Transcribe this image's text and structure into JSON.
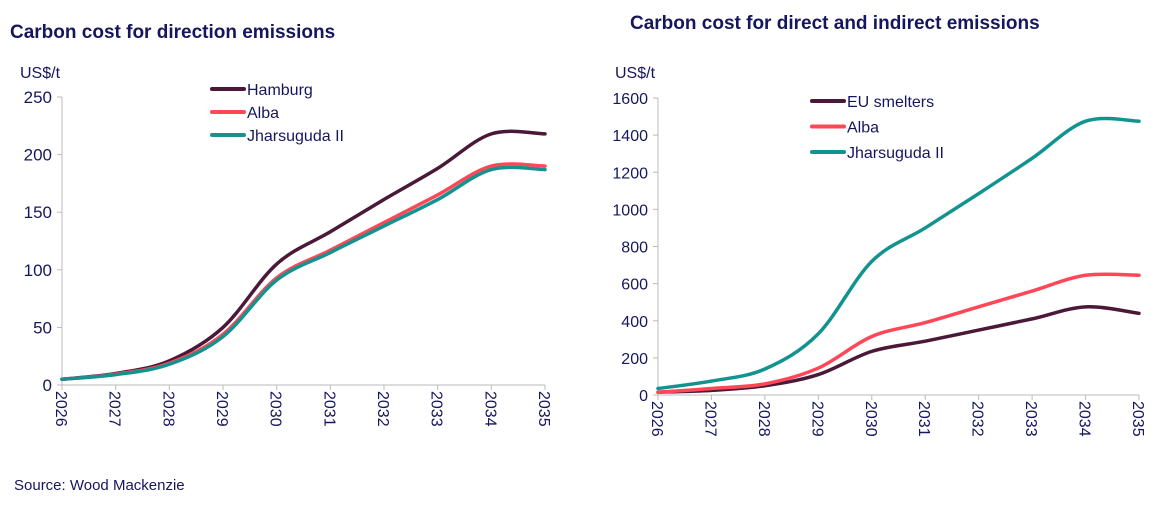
{
  "source": "Source: Wood Mackenzie",
  "chart_data": [
    {
      "type": "line",
      "title": "Carbon cost for direction emissions",
      "ylabel": "US$/t",
      "x": [
        "2026",
        "2027",
        "2028",
        "2029",
        "2030",
        "2031",
        "2032",
        "2033",
        "2034",
        "2035"
      ],
      "ylim": [
        0,
        250
      ],
      "yticks": [
        0,
        50,
        100,
        150,
        200,
        250
      ],
      "grid": false,
      "legend": "top-center",
      "series": [
        {
          "name": "Hamburg",
          "color": "#4b1838",
          "values": [
            5,
            10,
            21,
            50,
            105,
            133,
            161,
            188,
            218,
            218
          ]
        },
        {
          "name": "Alba",
          "color": "#ff4757",
          "values": [
            5,
            9.5,
            19,
            44,
            93,
            117,
            141,
            165,
            190,
            190
          ]
        },
        {
          "name": "Jharsuguda II",
          "color": "#13938f",
          "values": [
            5,
            9,
            18,
            42,
            91,
            115,
            138,
            161,
            187,
            187
          ]
        }
      ]
    },
    {
      "type": "line",
      "title": "Carbon cost for direct and indirect emissions",
      "ylabel": "US$/t",
      "x": [
        "2026",
        "2027",
        "2028",
        "2029",
        "2030",
        "2031",
        "2032",
        "2033",
        "2034",
        "2035"
      ],
      "ylim": [
        0,
        1600
      ],
      "yticks": [
        0,
        200,
        400,
        600,
        800,
        1000,
        1200,
        1400,
        1600
      ],
      "grid": false,
      "legend": "top-center",
      "series": [
        {
          "name": "EU smelters",
          "color": "#4b1838",
          "values": [
            15,
            25,
            50,
            110,
            235,
            290,
            350,
            410,
            475,
            440
          ]
        },
        {
          "name": "Alba",
          "color": "#ff4757",
          "values": [
            15,
            35,
            60,
            145,
            315,
            390,
            475,
            560,
            645,
            645
          ]
        },
        {
          "name": "Jharsuguda II",
          "color": "#13938f",
          "values": [
            35,
            75,
            140,
            330,
            720,
            900,
            1085,
            1275,
            1475,
            1475
          ]
        }
      ]
    }
  ]
}
